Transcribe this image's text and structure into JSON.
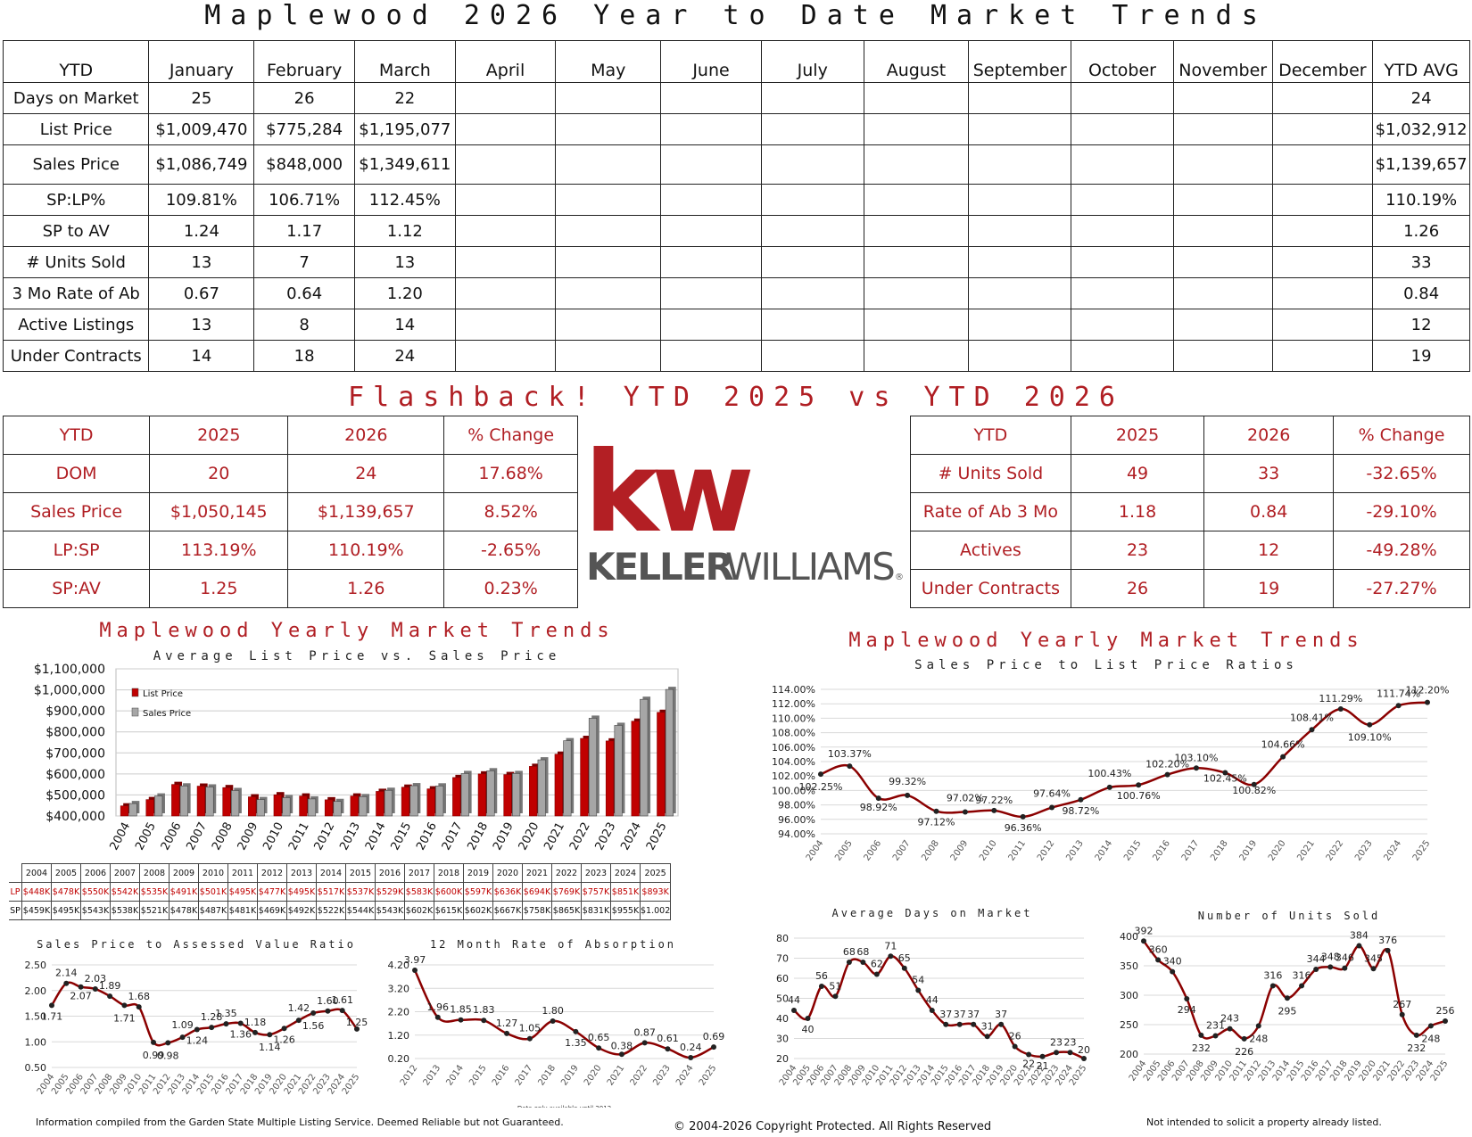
{
  "page": {
    "title": "Maplewood 2026 Year to Date Market Trends",
    "flashback_title": "Flashback!  YTD 2025 vs YTD 2026",
    "yearly_title": "Maplewood Yearly Market Trends",
    "footer_left": "Information compiled from the Garden State Multiple Listing Service.  Deemed Reliable but not Guaranteed.",
    "footer_center": "© 2004-2026 Copyright Protected.  All Rights Reserved",
    "footer_right": "Not intended to solicit a property already listed.",
    "logo_kw": "kw",
    "logo_name_1": "KELLER",
    "logo_name_2": "WILLIAMS",
    "logo_reg": "®"
  },
  "ytd_table": {
    "headers": [
      "YTD",
      "January",
      "February",
      "March",
      "April",
      "May",
      "June",
      "July",
      "August",
      "September",
      "October",
      "November",
      "December",
      "YTD AVG"
    ],
    "rows": [
      {
        "label": "Days on Market",
        "values": [
          "25",
          "26",
          "22",
          "",
          "",
          "",
          "",
          "",
          "",
          "",
          "",
          ""
        ],
        "avg": "24"
      },
      {
        "label": "List Price",
        "values": [
          "$1,009,470",
          "$775,284",
          "$1,195,077",
          "",
          "",
          "",
          "",
          "",
          "",
          "",
          "",
          ""
        ],
        "avg": "$1,032,912"
      },
      {
        "label": "Sales Price",
        "values": [
          "$1,086,749",
          "$848,000",
          "$1,349,611",
          "",
          "",
          "",
          "",
          "",
          "",
          "",
          "",
          ""
        ],
        "avg": "$1,139,657"
      },
      {
        "label": "SP:LP%",
        "values": [
          "109.81%",
          "106.71%",
          "112.45%",
          "",
          "",
          "",
          "",
          "",
          "",
          "",
          "",
          ""
        ],
        "avg": "110.19%"
      },
      {
        "label": "SP to AV",
        "values": [
          "1.24",
          "1.17",
          "1.12",
          "",
          "",
          "",
          "",
          "",
          "",
          "",
          "",
          ""
        ],
        "avg": "1.26"
      },
      {
        "label": "# Units Sold",
        "values": [
          "13",
          "7",
          "13",
          "",
          "",
          "",
          "",
          "",
          "",
          "",
          "",
          ""
        ],
        "avg": "33"
      },
      {
        "label": "3 Mo Rate of Ab",
        "values": [
          "0.67",
          "0.64",
          "1.20",
          "",
          "",
          "",
          "",
          "",
          "",
          "",
          "",
          ""
        ],
        "avg": "0.84"
      },
      {
        "label": "Active Listings",
        "values": [
          "13",
          "8",
          "14",
          "",
          "",
          "",
          "",
          "",
          "",
          "",
          "",
          ""
        ],
        "avg": "12"
      },
      {
        "label": "Under Contracts",
        "values": [
          "14",
          "18",
          "24",
          "",
          "",
          "",
          "",
          "",
          "",
          "",
          "",
          ""
        ],
        "avg": "19"
      }
    ]
  },
  "compare_left": {
    "headers": [
      "YTD",
      "2025",
      "2026",
      "% Change"
    ],
    "rows": [
      [
        "DOM",
        "20",
        "24",
        "17.68%"
      ],
      [
        "Sales Price",
        "$1,050,145",
        "$1,139,657",
        "8.52%"
      ],
      [
        "LP:SP",
        "113.19%",
        "110.19%",
        "-2.65%"
      ],
      [
        "SP:AV",
        "1.25",
        "1.26",
        "0.23%"
      ]
    ]
  },
  "compare_right": {
    "headers": [
      "YTD",
      "2025",
      "2026",
      "% Change"
    ],
    "rows": [
      [
        "# Units Sold",
        "49",
        "33",
        "-32.65%"
      ],
      [
        "Rate of Ab 3 Mo",
        "1.18",
        "0.84",
        "-29.10%"
      ],
      [
        "Actives",
        "23",
        "12",
        "-49.28%"
      ],
      [
        "Under Contracts",
        "26",
        "19",
        "-27.27%"
      ]
    ]
  },
  "chart_data": [
    {
      "type": "bar",
      "title": "Average List Price vs. Sales Price",
      "categories": [
        "2004",
        "2005",
        "2006",
        "2007",
        "2008",
        "2009",
        "2010",
        "2011",
        "2012",
        "2013",
        "2014",
        "2015",
        "2016",
        "2017",
        "2018",
        "2019",
        "2020",
        "2021",
        "2022",
        "2023",
        "2024",
        "2025"
      ],
      "series": [
        {
          "name": "List Price",
          "color": "#c00000",
          "values": [
            448,
            478,
            550,
            542,
            535,
            491,
            501,
            495,
            477,
            495,
            517,
            537,
            529,
            583,
            600,
            597,
            636,
            694,
            769,
            757,
            851,
            893
          ]
        },
        {
          "name": "Sales Price",
          "color": "#a6a6a6",
          "values": [
            459,
            495,
            543,
            538,
            521,
            478,
            487,
            481,
            469,
            492,
            522,
            544,
            543,
            602,
            615,
            602,
            667,
            758,
            865,
            831,
            955,
            1002
          ]
        }
      ],
      "yticks": [
        "$400,000",
        "$500,000",
        "$600,000",
        "$700,000",
        "$800,000",
        "$900,000",
        "$1,000,000",
        "$1,100,000"
      ],
      "ylim": [
        400,
        1100
      ],
      "table_rows": [
        {
          "label": "LP",
          "values": [
            "$448K",
            "$478K",
            "$550K",
            "$542K",
            "$535K",
            "$491K",
            "$501K",
            "$495K",
            "$477K",
            "$495K",
            "$517K",
            "$537K",
            "$529K",
            "$583K",
            "$600K",
            "$597K",
            "$636K",
            "$694K",
            "$769K",
            "$757K",
            "$851K",
            "$893K"
          ]
        },
        {
          "label": "SP",
          "values": [
            "$459K",
            "$495K",
            "$543K",
            "$538K",
            "$521K",
            "$478K",
            "$487K",
            "$481K",
            "$469K",
            "$492K",
            "$522K",
            "$544K",
            "$543K",
            "$602K",
            "$615K",
            "$602K",
            "$667K",
            "$758K",
            "$865K",
            "$831K",
            "$955K",
            "$1.002"
          ]
        }
      ],
      "legend": "top-left"
    },
    {
      "type": "line",
      "title": "Sales Price to List Price Ratios",
      "x": [
        "2004",
        "2005",
        "2006",
        "2007",
        "2008",
        "2009",
        "2010",
        "2011",
        "2012",
        "2013",
        "2014",
        "2015",
        "2016",
        "2017",
        "2018",
        "2019",
        "2020",
        "2021",
        "2022",
        "2023",
        "2024",
        "2025"
      ],
      "values": [
        102.25,
        103.37,
        98.92,
        99.32,
        97.12,
        97.02,
        97.22,
        96.36,
        97.64,
        98.72,
        100.43,
        100.76,
        102.2,
        103.1,
        102.45,
        100.82,
        104.66,
        108.41,
        111.29,
        109.1,
        111.74,
        112.2
      ],
      "labels": [
        "102.25%",
        "103.37%",
        "98.92%",
        "99.32%",
        "97.12%",
        "97.02%",
        "97.22%",
        "96.36%",
        "97.64%",
        "98.72%",
        "100.43%",
        "100.76%",
        "102.20%",
        "103.10%",
        "102.45%",
        "100.82%",
        "104.66%",
        "108.41%",
        "111.29%",
        "109.10%",
        "111.74%",
        "112.20%"
      ],
      "yticks": [
        "94.00%",
        "96.00%",
        "98.00%",
        "100.00%",
        "102.00%",
        "104.00%",
        "106.00%",
        "108.00%",
        "110.00%",
        "112.00%",
        "114.00%"
      ],
      "ylim": [
        94,
        114
      ]
    },
    {
      "type": "line",
      "title": "Sales Price to Assessed Value Ratio",
      "x": [
        "2004",
        "2005",
        "2006",
        "2007",
        "2008",
        "2009",
        "2010",
        "2011",
        "2012",
        "2013",
        "2014",
        "2015",
        "2016",
        "2017",
        "2018",
        "2019",
        "2020",
        "2021",
        "2022",
        "2023",
        "2024",
        "2025"
      ],
      "values": [
        1.71,
        2.14,
        2.07,
        2.03,
        1.89,
        1.71,
        1.68,
        0.99,
        0.98,
        1.09,
        1.24,
        1.28,
        1.35,
        1.36,
        1.18,
        1.14,
        1.26,
        1.42,
        1.56,
        1.6,
        1.61,
        1.25
      ],
      "labels": [
        "1.71",
        "2.14",
        "2.07",
        "2.03",
        "1.89",
        "1.71",
        "1.68",
        "0.99",
        "0.98",
        "1.09",
        "1.24",
        "1.28",
        "1.35",
        "1.36",
        "1.18",
        "1.14",
        "1.26",
        "1.42",
        "1.56",
        "1.60",
        "1.61",
        "1.25"
      ],
      "yticks": [
        "0.50",
        "1.00",
        "1.50",
        "2.00",
        "2.50"
      ],
      "ylim": [
        0.5,
        2.5
      ]
    },
    {
      "type": "line",
      "title": "12 Month Rate of Absorption",
      "x": [
        "2012",
        "2013",
        "2014",
        "2015",
        "2016",
        "2017",
        "2018",
        "2019",
        "2020",
        "2021",
        "2022",
        "2023",
        "2024",
        "2025"
      ],
      "values": [
        3.97,
        1.96,
        1.85,
        1.83,
        1.27,
        1.05,
        1.8,
        1.35,
        0.65,
        0.38,
        0.87,
        0.61,
        0.24,
        0.69
      ],
      "labels": [
        "3.97",
        "1.96",
        "1.85",
        "1.83",
        "1.27",
        "1.05",
        "1.80",
        "1.35",
        "0.65",
        "0.38",
        "0.87",
        "0.61",
        "0.24",
        "0.69"
      ],
      "yticks": [
        "0.20",
        "1.20",
        "2.20",
        "3.20",
        "4.20"
      ],
      "ylim": [
        0.2,
        4.2
      ],
      "note": "Data only available until 2012"
    },
    {
      "type": "line",
      "title": "Average Days on Market",
      "x": [
        "2004",
        "2005",
        "2006",
        "2007",
        "2008",
        "2009",
        "2010",
        "2011",
        "2012",
        "2013",
        "2014",
        "2015",
        "2016",
        "2017",
        "2018",
        "2019",
        "2020",
        "2021",
        "2022",
        "2023",
        "2024",
        "2025"
      ],
      "values": [
        44,
        40,
        56,
        51,
        68,
        68,
        62,
        71,
        65,
        54,
        44,
        37,
        37,
        37,
        31,
        37,
        26,
        22,
        21,
        23,
        23,
        20
      ],
      "labels": [
        "44",
        "40",
        "56",
        "51",
        "68",
        "68",
        "62",
        "71",
        "65",
        "54",
        "44",
        "37",
        "37",
        "37",
        "31",
        "37",
        "26",
        "22",
        "21",
        "23",
        "23",
        "20"
      ],
      "yticks": [
        "20",
        "30",
        "40",
        "50",
        "60",
        "70",
        "80"
      ],
      "ylim": [
        20,
        80
      ]
    },
    {
      "type": "line",
      "title": "Number of Units Sold",
      "x": [
        "2004",
        "2005",
        "2006",
        "2007",
        "2008",
        "2009",
        "2010",
        "2011",
        "2012",
        "2013",
        "2014",
        "2015",
        "2016",
        "2017",
        "2018",
        "2019",
        "2020",
        "2021",
        "2022",
        "2023",
        "2024",
        "2025"
      ],
      "values": [
        392,
        360,
        340,
        294,
        232,
        231,
        243,
        226,
        248,
        316,
        295,
        316,
        344,
        348,
        346,
        384,
        345,
        376,
        267,
        232,
        248,
        256
      ],
      "labels": [
        "392",
        "360",
        "340",
        "294",
        "232",
        "231",
        "243",
        "226",
        "248",
        "316",
        "295",
        "316",
        "344",
        "348",
        "346",
        "384",
        "345",
        "376",
        "267",
        "232",
        "248",
        "256"
      ],
      "yticks": [
        "200",
        "250",
        "300",
        "350",
        "400"
      ],
      "ylim": [
        200,
        400
      ]
    }
  ]
}
